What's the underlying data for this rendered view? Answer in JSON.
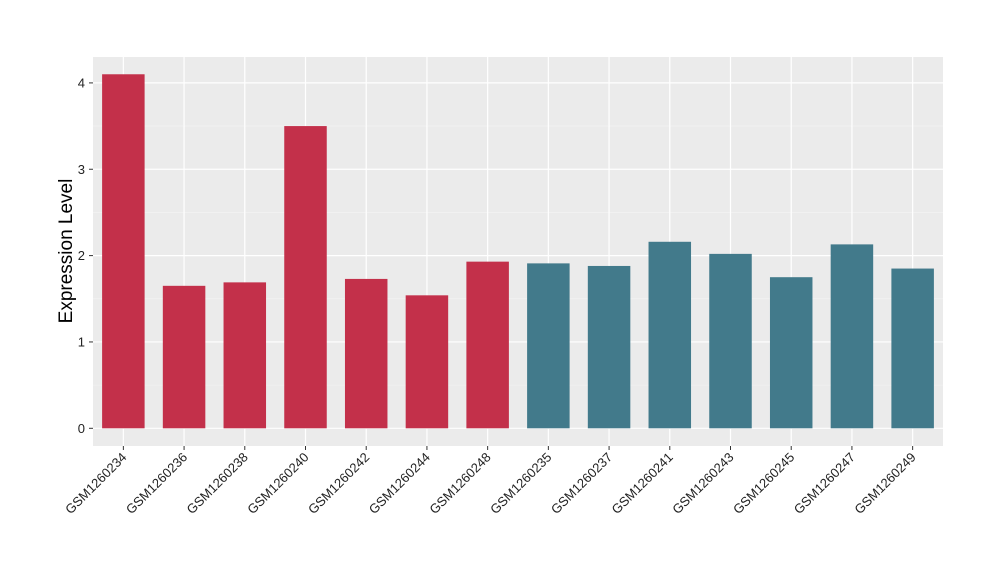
{
  "chart_data": {
    "type": "bar",
    "title": "",
    "xlabel": "",
    "ylabel": "Expression Level",
    "ylim": [
      -0.205,
      4.3
    ],
    "yticks": [
      0,
      1,
      2,
      3,
      4
    ],
    "grid": true,
    "categories": [
      "GSM1260234",
      "GSM1260236",
      "GSM1260238",
      "GSM1260240",
      "GSM1260242",
      "GSM1260244",
      "GSM1260248",
      "GSM1260235",
      "GSM1260237",
      "GSM1260241",
      "GSM1260243",
      "GSM1260245",
      "GSM1260247",
      "GSM1260249"
    ],
    "values": [
      4.1,
      1.65,
      1.69,
      3.5,
      1.73,
      1.54,
      1.93,
      1.91,
      1.88,
      2.16,
      2.02,
      1.75,
      2.13,
      1.85
    ],
    "groups": [
      0,
      0,
      0,
      0,
      0,
      0,
      0,
      1,
      1,
      1,
      1,
      1,
      1,
      1
    ],
    "group_colors": [
      "#c3304a",
      "#427a8b"
    ]
  }
}
